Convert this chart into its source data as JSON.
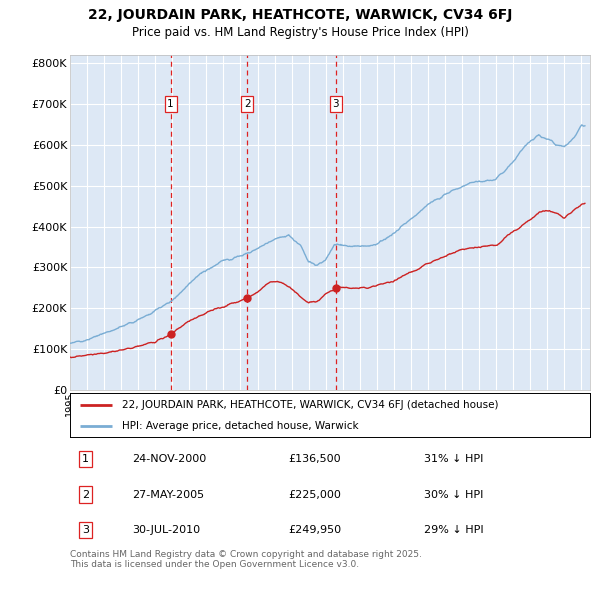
{
  "title": "22, JOURDAIN PARK, HEATHCOTE, WARWICK, CV34 6FJ",
  "subtitle": "Price paid vs. HM Land Registry's House Price Index (HPI)",
  "hpi_label": "HPI: Average price, detached house, Warwick",
  "price_label": "22, JOURDAIN PARK, HEATHCOTE, WARWICK, CV34 6FJ (detached house)",
  "footer": "Contains HM Land Registry data © Crown copyright and database right 2025.\nThis data is licensed under the Open Government Licence v3.0.",
  "transactions": [
    {
      "num": 1,
      "date": "24-NOV-2000",
      "price": 136500,
      "pct": "31%",
      "year": 2000.9
    },
    {
      "num": 2,
      "date": "27-MAY-2005",
      "price": 225000,
      "pct": "30%",
      "year": 2005.4
    },
    {
      "num": 3,
      "date": "30-JUL-2010",
      "price": 249950,
      "pct": "29%",
      "year": 2010.6
    }
  ],
  "hpi_color": "#7aadd4",
  "price_color": "#cc2222",
  "bg_color": "#dde8f5",
  "grid_color": "#ffffff",
  "dashed_color": "#dd2222",
  "ylim": [
    0,
    820000
  ],
  "yticks": [
    0,
    100000,
    200000,
    300000,
    400000,
    500000,
    600000,
    700000,
    800000
  ],
  "fig_width": 6.0,
  "fig_height": 5.9,
  "dpi": 100
}
